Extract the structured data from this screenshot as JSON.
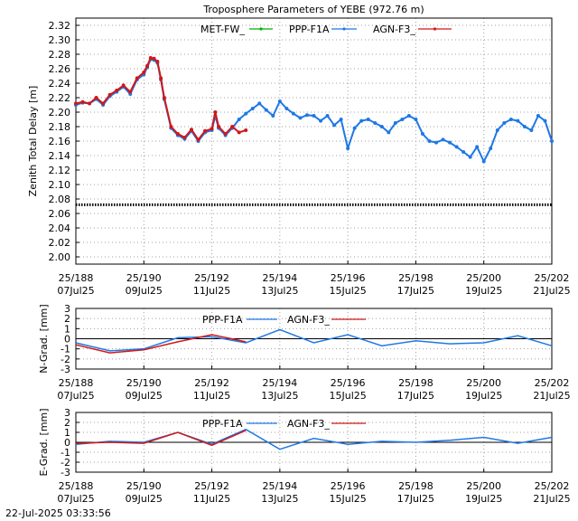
{
  "timestamp": "22-Jul-2025 03:33:56",
  "colors": {
    "met": "#00b000",
    "ppp": "#1e78e6",
    "agn": "#d01818",
    "black": "#000000"
  },
  "chart_data": [
    {
      "type": "line",
      "title": "Troposphere Parameters of YEBE (972.76 m)",
      "ylabel": "Zenith Total Delay [m]",
      "xlabel": "",
      "xlim": [
        188,
        202
      ],
      "ylim": [
        1.99,
        2.33
      ],
      "yticks": [
        2.0,
        2.02,
        2.04,
        2.06,
        2.08,
        2.1,
        2.12,
        2.14,
        2.16,
        2.18,
        2.2,
        2.22,
        2.24,
        2.26,
        2.28,
        2.3,
        2.32
      ],
      "ytick_labels": [
        "2.00",
        "2.02",
        "2.04",
        "2.06",
        "2.08",
        "2.10",
        "2.12",
        "2.14",
        "2.16",
        "2.18",
        "2.20",
        "2.22",
        "2.24",
        "2.26",
        "2.28",
        "2.30",
        "2.32"
      ],
      "xticks": [
        188,
        190,
        192,
        194,
        196,
        198,
        200,
        202
      ],
      "xtick_labels_top": [
        "25/188",
        "25/190",
        "25/192",
        "25/194",
        "25/196",
        "25/198",
        "25/200",
        "25/202"
      ],
      "xtick_labels_bottom": [
        "07Jul25",
        "09Jul25",
        "11Jul25",
        "13Jul25",
        "15Jul25",
        "17Jul25",
        "19Jul25",
        "21Jul25"
      ],
      "grid": true,
      "legend_position": "top",
      "legend": [
        "MET-FW_",
        "PPP-F1A",
        "AGN-F3_"
      ],
      "series": [
        {
          "name": "MET-FW_",
          "style": "points",
          "x": [
            188.0,
            202.0
          ],
          "values": [
            2.072,
            2.072
          ]
        },
        {
          "name": "PPP-F1A",
          "style": "line-points",
          "x": [
            188.0,
            188.2,
            188.4,
            188.6,
            188.8,
            189.0,
            189.2,
            189.4,
            189.6,
            189.8,
            190.0,
            190.1,
            190.2,
            190.3,
            190.4,
            190.5,
            190.6,
            190.8,
            191.0,
            191.2,
            191.4,
            191.6,
            191.8,
            192.0,
            192.1,
            192.2,
            192.4,
            192.6,
            192.8,
            193.0,
            193.2,
            193.4,
            193.6,
            193.8,
            194.0,
            194.2,
            194.4,
            194.6,
            194.8,
            195.0,
            195.2,
            195.4,
            195.6,
            195.8,
            196.0,
            196.2,
            196.4,
            196.6,
            196.8,
            197.0,
            197.2,
            197.4,
            197.6,
            197.8,
            198.0,
            198.2,
            198.4,
            198.6,
            198.8,
            199.0,
            199.2,
            199.4,
            199.6,
            199.8,
            200.0,
            200.2,
            200.4,
            200.6,
            200.8,
            201.0,
            201.2,
            201.4,
            201.6,
            201.8,
            202.0
          ],
          "values": [
            2.21,
            2.213,
            2.212,
            2.218,
            2.21,
            2.222,
            2.228,
            2.235,
            2.225,
            2.245,
            2.252,
            2.262,
            2.273,
            2.272,
            2.268,
            2.245,
            2.218,
            2.178,
            2.168,
            2.163,
            2.174,
            2.16,
            2.172,
            2.175,
            2.195,
            2.178,
            2.168,
            2.178,
            2.19,
            2.198,
            2.205,
            2.212,
            2.203,
            2.195,
            2.215,
            2.205,
            2.198,
            2.192,
            2.196,
            2.195,
            2.188,
            2.195,
            2.182,
            2.19,
            2.15,
            2.178,
            2.188,
            2.19,
            2.185,
            2.18,
            2.172,
            2.185,
            2.19,
            2.195,
            2.19,
            2.17,
            2.16,
            2.158,
            2.162,
            2.158,
            2.152,
            2.145,
            2.138,
            2.152,
            2.132,
            2.15,
            2.175,
            2.185,
            2.19,
            2.188,
            2.18,
            2.175,
            2.195,
            2.188,
            2.16
          ]
        },
        {
          "name": "AGN-F3_",
          "style": "line-points",
          "x": [
            188.0,
            188.2,
            188.4,
            188.6,
            188.8,
            189.0,
            189.2,
            189.4,
            189.6,
            189.8,
            190.0,
            190.1,
            190.2,
            190.3,
            190.4,
            190.5,
            190.6,
            190.8,
            191.0,
            191.2,
            191.4,
            191.6,
            191.8,
            192.0,
            192.1,
            192.2,
            192.4,
            192.6,
            192.8,
            193.0
          ],
          "values": [
            2.212,
            2.214,
            2.212,
            2.22,
            2.212,
            2.224,
            2.23,
            2.237,
            2.228,
            2.247,
            2.255,
            2.264,
            2.275,
            2.274,
            2.27,
            2.247,
            2.22,
            2.18,
            2.17,
            2.165,
            2.176,
            2.162,
            2.174,
            2.177,
            2.2,
            2.18,
            2.17,
            2.18,
            2.172,
            2.175
          ]
        }
      ]
    },
    {
      "type": "line",
      "title": "",
      "ylabel": "N-Grad. [mm]",
      "xlim": [
        188,
        202
      ],
      "ylim": [
        -3,
        3
      ],
      "yticks": [
        -3,
        -2,
        -1,
        0,
        1,
        2,
        3
      ],
      "ytick_labels": [
        "-3",
        "-2",
        "-1",
        "0",
        "1",
        "2",
        "3"
      ],
      "xticks": [
        188,
        190,
        192,
        194,
        196,
        198,
        200,
        202
      ],
      "xtick_labels_top": [
        "25/188",
        "25/190",
        "25/192",
        "25/194",
        "25/196",
        "25/198",
        "25/200",
        "25/202"
      ],
      "xtick_labels_bottom": [
        "07Jul25",
        "09Jul25",
        "11Jul25",
        "13Jul25",
        "15Jul25",
        "17Jul25",
        "19Jul25",
        "21Jul25"
      ],
      "grid": true,
      "legend_position": "top",
      "legend": [
        "PPP-F1A",
        "AGN-F3_"
      ],
      "series": [
        {
          "name": "PPP-F1A",
          "x": [
            188,
            189,
            190,
            191,
            192,
            193,
            194,
            195,
            196,
            197,
            198,
            199,
            200,
            201,
            202
          ],
          "values": [
            -0.4,
            -1.2,
            -1.0,
            0.1,
            0.2,
            -0.4,
            0.9,
            -0.4,
            0.4,
            -0.7,
            -0.2,
            -0.5,
            -0.4,
            0.3,
            -0.7
          ]
        },
        {
          "name": "AGN-F3_",
          "x": [
            188,
            189,
            190,
            191,
            192,
            193
          ],
          "values": [
            -0.6,
            -1.4,
            -1.1,
            -0.3,
            0.4,
            -0.3
          ]
        }
      ]
    },
    {
      "type": "line",
      "title": "",
      "ylabel": "E-Grad. [mm]",
      "xlim": [
        188,
        202
      ],
      "ylim": [
        -3,
        3
      ],
      "yticks": [
        -3,
        -2,
        -1,
        0,
        1,
        2,
        3
      ],
      "ytick_labels": [
        "-3",
        "-2",
        "-1",
        "0",
        "1",
        "2",
        "3"
      ],
      "xticks": [
        188,
        190,
        192,
        194,
        196,
        198,
        200,
        202
      ],
      "xtick_labels_top": [
        "25/188",
        "25/190",
        "25/192",
        "25/194",
        "25/196",
        "25/198",
        "25/200",
        "25/202"
      ],
      "xtick_labels_bottom": [
        "07Jul25",
        "09Jul25",
        "11Jul25",
        "13Jul25",
        "15Jul25",
        "17Jul25",
        "19Jul25",
        "21Jul25"
      ],
      "grid": true,
      "legend_position": "top",
      "legend": [
        "PPP-F1A",
        "AGN-F3_"
      ],
      "series": [
        {
          "name": "PPP-F1A",
          "x": [
            188,
            189,
            190,
            191,
            192,
            193,
            194,
            195,
            196,
            197,
            198,
            199,
            200,
            201,
            202
          ],
          "values": [
            -0.2,
            0.1,
            0.0,
            1.0,
            -0.2,
            1.3,
            -0.7,
            0.4,
            -0.2,
            0.1,
            0.0,
            0.2,
            0.5,
            -0.1,
            0.5
          ]
        },
        {
          "name": "AGN-F3_",
          "x": [
            188,
            189,
            190,
            191,
            192,
            193
          ],
          "values": [
            -0.1,
            0.0,
            -0.1,
            1.0,
            -0.3,
            1.2
          ]
        }
      ]
    }
  ]
}
